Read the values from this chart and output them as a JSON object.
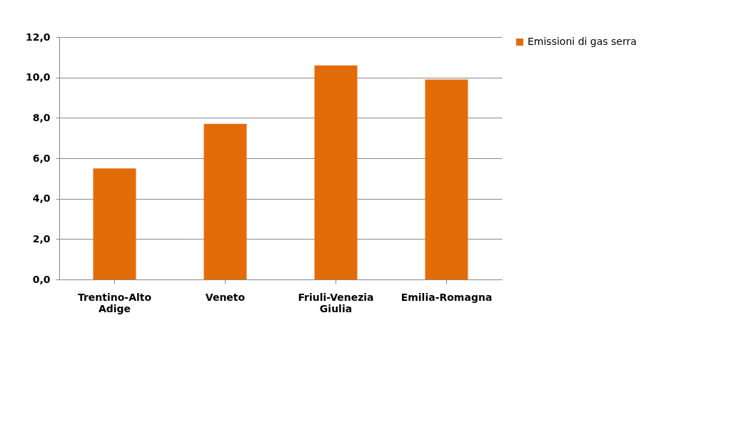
{
  "chart_data": {
    "type": "bar",
    "categories": [
      "Trentino-Alto Adige",
      "Veneto",
      "Friuli-Venezia Giulia",
      "Emilia-Romagna"
    ],
    "series": [
      {
        "name": "Emissioni di gas serra",
        "color": "#e36c09",
        "values": [
          5.5,
          7.7,
          10.6,
          9.9
        ]
      }
    ],
    "ylim": [
      0,
      12
    ],
    "yticks": [
      {
        "value": 0,
        "label": "0,0"
      },
      {
        "value": 2,
        "label": "2,0"
      },
      {
        "value": 4,
        "label": "4,0"
      },
      {
        "value": 6,
        "label": "6,0"
      },
      {
        "value": 8,
        "label": "8,0"
      },
      {
        "value": 10,
        "label": "10,0"
      },
      {
        "value": 12,
        "label": "12,0"
      }
    ],
    "grid": "y",
    "legend": "right"
  }
}
